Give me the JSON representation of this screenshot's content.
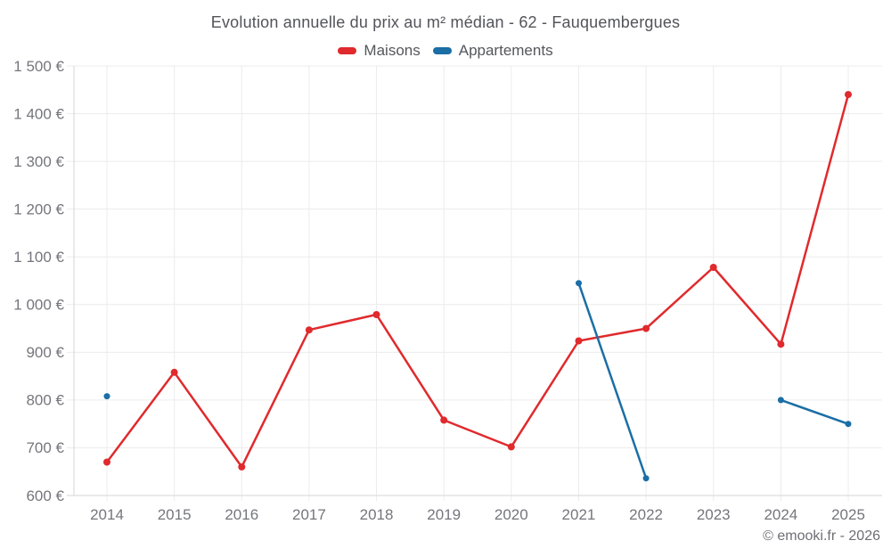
{
  "header": {
    "title": "Evolution annuelle du prix au m² médian - 62 - Fauquembergues"
  },
  "legend": [
    {
      "label": "Maisons",
      "color": "#e02a2d"
    },
    {
      "label": "Appartements",
      "color": "#1b6ea6"
    }
  ],
  "footer": {
    "credit": "© emooki.fr - 2026"
  },
  "chart_data": {
    "type": "line",
    "title": "Evolution annuelle du prix au m² médian - 62 - Fauquembergues",
    "xlabel": "",
    "ylabel": "",
    "categories": [
      "2014",
      "2015",
      "2016",
      "2017",
      "2018",
      "2019",
      "2020",
      "2021",
      "2022",
      "2023",
      "2024",
      "2025"
    ],
    "series": [
      {
        "name": "Maisons",
        "color": "#e02a2d",
        "values": [
          670,
          858,
          660,
          947,
          979,
          758,
          702,
          924,
          950,
          1078,
          917,
          1440
        ]
      },
      {
        "name": "Appartements",
        "color": "#1b6ea6",
        "values": [
          808,
          null,
          null,
          null,
          null,
          null,
          null,
          1045,
          636,
          null,
          800,
          750
        ]
      }
    ],
    "ylim": [
      600,
      1500
    ],
    "ytick_step": 100,
    "ytick_labels": [
      "600 €",
      "700 €",
      "800 €",
      "900 €",
      "1 000 €",
      "1 100 €",
      "1 200 €",
      "1 300 €",
      "1 400 €",
      "1 500 €"
    ],
    "currency_suffix": " €",
    "grid": true,
    "grid_color": "#ececec",
    "axis_color": "#d5d5d8",
    "legend_position": "top"
  }
}
